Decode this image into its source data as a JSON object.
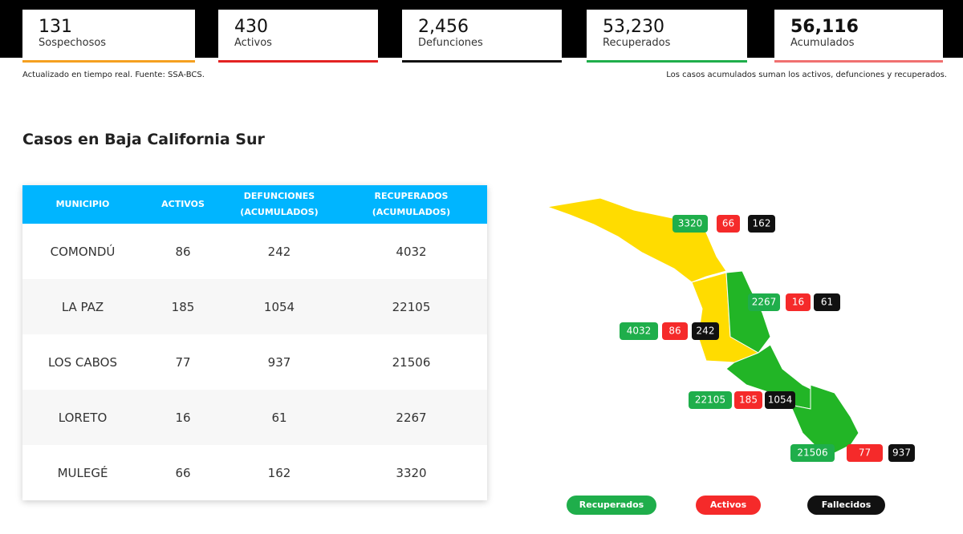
{
  "cards": [
    {
      "value": "131",
      "label": "Sospechosos"
    },
    {
      "value": "430",
      "label": "Activos"
    },
    {
      "value": "2,456",
      "label": "Defunciones"
    },
    {
      "value": "53,230",
      "label": "Recuperados"
    },
    {
      "value": "56,116",
      "label": "Acumulados"
    }
  ],
  "notes": {
    "left": "Actualizado en tiempo real. Fuente: SSA-BCS.",
    "right": "Los casos acumulados suman los activos, defunciones y recuperados."
  },
  "section_title": "Casos en Baja California Sur",
  "table": {
    "headers": [
      "MUNICIPIO",
      "ACTIVOS",
      "DEFUNCIONES (ACUMULADOS)",
      "RECUPERADOS (ACUMULADOS)"
    ],
    "rows": [
      [
        "COMONDÚ",
        "86",
        "242",
        "4032"
      ],
      [
        "LA PAZ",
        "185",
        "1054",
        "22105"
      ],
      [
        "LOS CABOS",
        "77",
        "937",
        "21506"
      ],
      [
        "LORETO",
        "16",
        "61",
        "2267"
      ],
      [
        "MULEGÉ",
        "66",
        "162",
        "3320"
      ]
    ]
  },
  "map": {
    "badges": [
      {
        "recuperados": "3320",
        "activos": "66",
        "fallecidos": "162"
      },
      {
        "recuperados": "2267",
        "activos": "16",
        "fallecidos": "61"
      },
      {
        "recuperados": "4032",
        "activos": "86",
        "fallecidos": "242"
      },
      {
        "recuperados": "22105",
        "activos": "185",
        "fallecidos": "1054"
      },
      {
        "recuperados": "21506",
        "activos": "77",
        "fallecidos": "937"
      }
    ]
  },
  "legend": [
    "Recuperados",
    "Activos",
    "Fallecidos"
  ]
}
